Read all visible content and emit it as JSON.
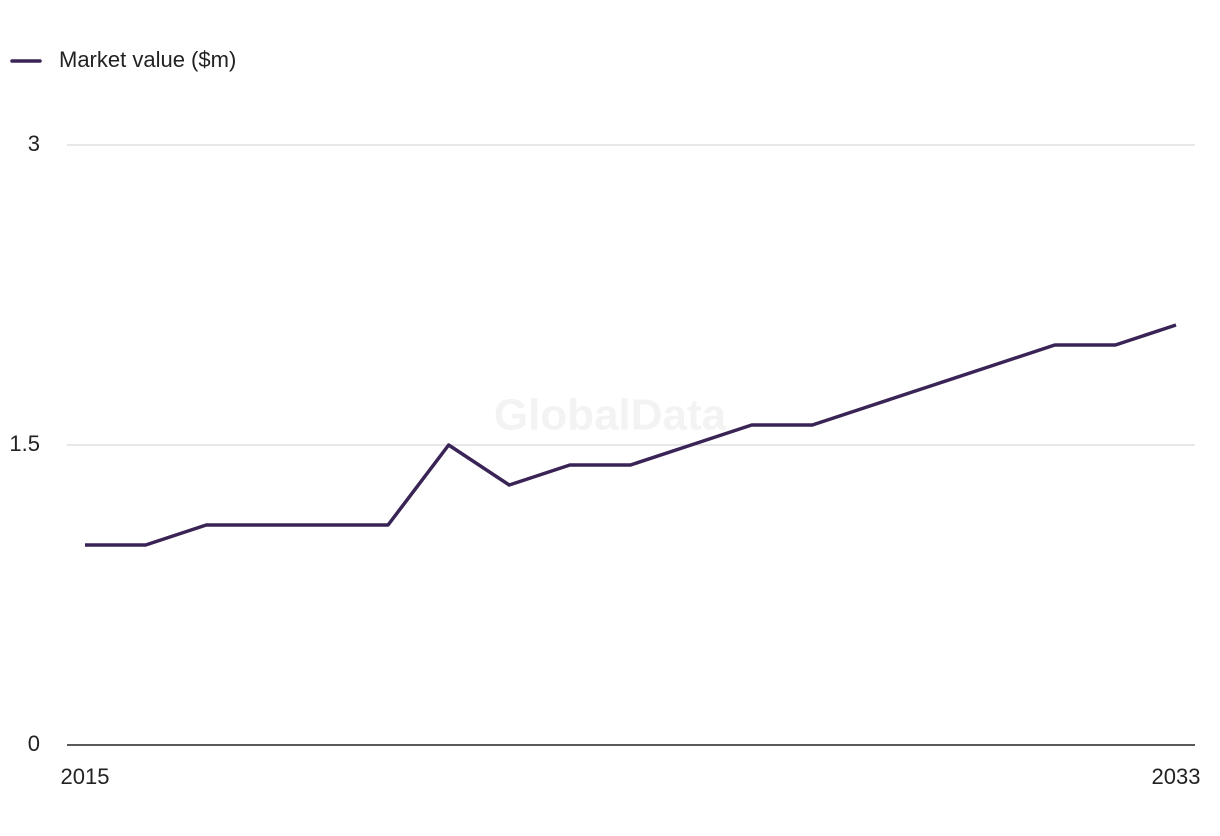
{
  "chart_data": {
    "type": "line",
    "watermark": "GlobalData",
    "x": [
      2015,
      2016,
      2017,
      2018,
      2019,
      2020,
      2021,
      2022,
      2023,
      2024,
      2025,
      2026,
      2027,
      2028,
      2029,
      2030,
      2031,
      2032,
      2033
    ],
    "series": [
      {
        "name": "Market value ($m)",
        "color": "#3a2456",
        "values": [
          1.0,
          1.0,
          1.1,
          1.1,
          1.1,
          1.1,
          1.5,
          1.3,
          1.4,
          1.4,
          1.5,
          1.6,
          1.6,
          1.7,
          1.8,
          1.9,
          2.0,
          2.0,
          2.1
        ]
      }
    ],
    "xlim": [
      2015,
      2033
    ],
    "xticks": [
      2015,
      2033
    ],
    "ylim": [
      0,
      3
    ],
    "yticks": [
      0,
      1.5,
      3
    ],
    "grid": true,
    "legend": "top-left"
  }
}
